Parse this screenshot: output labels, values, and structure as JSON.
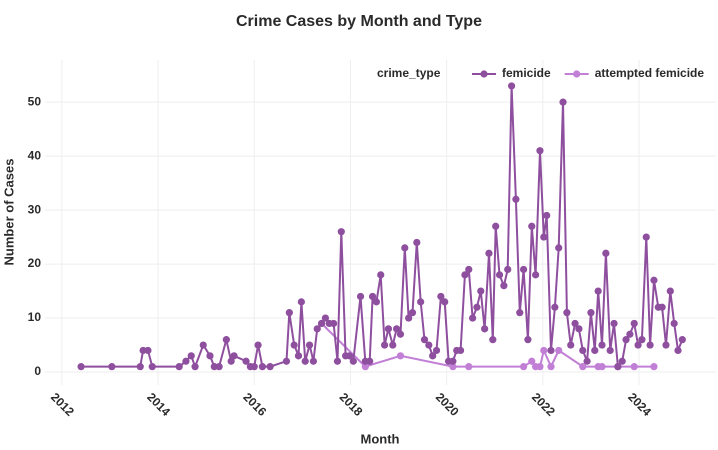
{
  "chart_data": {
    "type": "line",
    "title": "Crime Cases by Month and Type",
    "x_label": "Month",
    "y_label": "Number of Cases",
    "legend_title": "crime_type",
    "legend_position": "top-right",
    "grid": true,
    "xlim": [
      2011.65,
      2025.6
    ],
    "xticks": [
      2012,
      2014,
      2016,
      2018,
      2020,
      2022,
      2024
    ],
    "ylim": [
      -2.4,
      57.8
    ],
    "yticks": [
      0,
      10,
      20,
      30,
      40,
      50
    ],
    "series": [
      {
        "name": "femicide",
        "color": "#8e4f9e",
        "x": [
          2012.4,
          2013.04,
          2013.63,
          2013.69,
          2013.79,
          2013.88,
          2014.44,
          2014.58,
          2014.69,
          2014.77,
          2014.94,
          2015.08,
          2015.17,
          2015.27,
          2015.42,
          2015.52,
          2015.58,
          2015.83,
          2015.92,
          2016.0,
          2016.08,
          2016.17,
          2016.33,
          2016.67,
          2016.73,
          2016.83,
          2016.92,
          2016.98,
          2017.06,
          2017.15,
          2017.23,
          2017.31,
          2017.4,
          2017.48,
          2017.56,
          2017.65,
          2017.73,
          2017.81,
          2017.9,
          2017.98,
          2018.06,
          2018.21,
          2018.31,
          2018.4,
          2018.46,
          2018.54,
          2018.63,
          2018.71,
          2018.79,
          2018.88,
          2018.96,
          2019.04,
          2019.13,
          2019.21,
          2019.29,
          2019.38,
          2019.46,
          2019.54,
          2019.63,
          2019.71,
          2019.79,
          2019.88,
          2019.96,
          2020.04,
          2020.13,
          2020.21,
          2020.29,
          2020.38,
          2020.46,
          2020.54,
          2020.63,
          2020.71,
          2020.79,
          2020.88,
          2020.96,
          2021.02,
          2021.1,
          2021.19,
          2021.27,
          2021.35,
          2021.44,
          2021.52,
          2021.6,
          2021.69,
          2021.77,
          2021.85,
          2021.94,
          2022.02,
          2022.08,
          2022.17,
          2022.25,
          2022.33,
          2022.42,
          2022.5,
          2022.58,
          2022.67,
          2022.75,
          2022.83,
          2022.92,
          2023.0,
          2023.08,
          2023.15,
          2023.23,
          2023.31,
          2023.4,
          2023.48,
          2023.56,
          2023.65,
          2023.73,
          2023.81,
          2023.9,
          2023.98,
          2024.06,
          2024.15,
          2024.23,
          2024.31,
          2024.4,
          2024.48,
          2024.56,
          2024.65,
          2024.73,
          2024.81,
          2024.9
        ],
        "values": [
          1,
          1,
          1,
          4,
          4,
          1,
          1,
          2,
          3,
          1,
          5,
          3,
          1,
          1,
          6,
          2,
          3,
          2,
          1,
          1,
          5,
          1,
          1,
          2,
          11,
          5,
          3,
          13,
          2,
          5,
          2,
          8,
          9,
          10,
          9,
          9,
          2,
          26,
          3,
          3,
          2,
          14,
          2,
          2,
          14,
          13,
          18,
          5,
          8,
          5,
          8,
          7,
          23,
          10,
          11,
          24,
          13,
          6,
          5,
          3,
          4,
          14,
          13,
          2,
          2,
          4,
          4,
          18,
          19,
          10,
          12,
          15,
          8,
          22,
          6,
          27,
          18,
          16,
          19,
          53,
          32,
          11,
          19,
          6,
          27,
          18,
          41,
          25,
          29,
          4,
          12,
          23,
          50,
          11,
          5,
          9,
          8,
          4,
          2,
          11,
          4,
          15,
          5,
          22,
          4,
          9,
          1,
          2,
          6,
          7,
          9,
          5,
          6,
          25,
          5,
          17,
          12,
          12,
          5,
          15,
          9,
          4,
          6
        ]
      },
      {
        "name": "attempted femicide",
        "color": "#c17fd6",
        "x": [
          2017.4,
          2018.31,
          2019.04,
          2020.13,
          2020.46,
          2021.6,
          2021.77,
          2021.85,
          2021.94,
          2022.02,
          2022.17,
          2022.33,
          2022.83,
          2023.15,
          2023.23,
          2023.56,
          2023.9,
          2024.31
        ],
        "values": [
          9,
          1,
          3,
          1,
          1,
          1,
          2,
          1,
          1,
          4,
          1,
          4,
          1,
          1,
          1,
          1,
          1,
          1
        ]
      }
    ]
  }
}
